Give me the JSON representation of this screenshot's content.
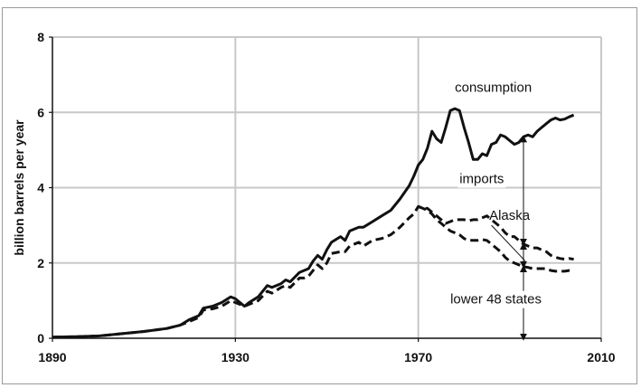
{
  "chart_data": {
    "type": "line",
    "ylabel": "billion barrels per year",
    "xlim": [
      1890,
      2010
    ],
    "ylim": [
      0,
      8
    ],
    "x_ticks": [
      1890,
      1930,
      1970,
      2010
    ],
    "y_ticks": [
      0,
      2,
      4,
      6,
      8
    ],
    "grid": true,
    "legend": "none",
    "series": [
      {
        "name": "consumption",
        "style": "solid",
        "color": "#111111",
        "points": [
          [
            1890,
            0.03
          ],
          [
            1895,
            0.04
          ],
          [
            1900,
            0.06
          ],
          [
            1905,
            0.12
          ],
          [
            1910,
            0.18
          ],
          [
            1915,
            0.26
          ],
          [
            1918,
            0.35
          ],
          [
            1920,
            0.5
          ],
          [
            1922,
            0.6
          ],
          [
            1923,
            0.8
          ],
          [
            1925,
            0.85
          ],
          [
            1927,
            0.95
          ],
          [
            1929,
            1.1
          ],
          [
            1930,
            1.05
          ],
          [
            1932,
            0.85
          ],
          [
            1933,
            0.95
          ],
          [
            1935,
            1.1
          ],
          [
            1937,
            1.4
          ],
          [
            1938,
            1.35
          ],
          [
            1940,
            1.45
          ],
          [
            1941,
            1.55
          ],
          [
            1942,
            1.5
          ],
          [
            1944,
            1.75
          ],
          [
            1945,
            1.8
          ],
          [
            1946,
            1.85
          ],
          [
            1947,
            2.05
          ],
          [
            1948,
            2.2
          ],
          [
            1949,
            2.1
          ],
          [
            1950,
            2.35
          ],
          [
            1951,
            2.55
          ],
          [
            1953,
            2.7
          ],
          [
            1954,
            2.6
          ],
          [
            1955,
            2.85
          ],
          [
            1957,
            2.95
          ],
          [
            1958,
            2.95
          ],
          [
            1960,
            3.1
          ],
          [
            1962,
            3.25
          ],
          [
            1964,
            3.4
          ],
          [
            1966,
            3.7
          ],
          [
            1968,
            4.05
          ],
          [
            1969,
            4.3
          ],
          [
            1970,
            4.6
          ],
          [
            1971,
            4.75
          ],
          [
            1972,
            5.05
          ],
          [
            1973,
            5.5
          ],
          [
            1974,
            5.3
          ],
          [
            1975,
            5.2
          ],
          [
            1976,
            5.6
          ],
          [
            1977,
            6.05
          ],
          [
            1978,
            6.1
          ],
          [
            1979,
            6.05
          ],
          [
            1980,
            5.6
          ],
          [
            1981,
            5.2
          ],
          [
            1982,
            4.75
          ],
          [
            1983,
            4.75
          ],
          [
            1984,
            4.9
          ],
          [
            1985,
            4.85
          ],
          [
            1986,
            5.15
          ],
          [
            1987,
            5.2
          ],
          [
            1988,
            5.4
          ],
          [
            1989,
            5.35
          ],
          [
            1990,
            5.25
          ],
          [
            1991,
            5.15
          ],
          [
            1992,
            5.2
          ],
          [
            1993,
            5.35
          ],
          [
            1994,
            5.4
          ],
          [
            1995,
            5.35
          ],
          [
            1996,
            5.5
          ],
          [
            1997,
            5.6
          ],
          [
            1998,
            5.7
          ],
          [
            1999,
            5.8
          ],
          [
            2000,
            5.85
          ],
          [
            2001,
            5.8
          ],
          [
            2002,
            5.82
          ],
          [
            2003,
            5.88
          ],
          [
            2004,
            5.93
          ]
        ]
      },
      {
        "name": "Alaska",
        "style": "dashed",
        "color": "#111111",
        "points": [
          [
            1890,
            0.03
          ],
          [
            1895,
            0.04
          ],
          [
            1900,
            0.06
          ],
          [
            1905,
            0.12
          ],
          [
            1910,
            0.18
          ],
          [
            1915,
            0.26
          ],
          [
            1918,
            0.35
          ],
          [
            1920,
            0.45
          ],
          [
            1922,
            0.55
          ],
          [
            1923,
            0.75
          ],
          [
            1925,
            0.78
          ],
          [
            1927,
            0.85
          ],
          [
            1929,
            1.0
          ],
          [
            1930,
            0.95
          ],
          [
            1932,
            0.85
          ],
          [
            1933,
            0.9
          ],
          [
            1935,
            1.0
          ],
          [
            1937,
            1.25
          ],
          [
            1938,
            1.2
          ],
          [
            1940,
            1.35
          ],
          [
            1941,
            1.4
          ],
          [
            1942,
            1.35
          ],
          [
            1944,
            1.6
          ],
          [
            1945,
            1.6
          ],
          [
            1946,
            1.65
          ],
          [
            1947,
            1.8
          ],
          [
            1948,
            1.95
          ],
          [
            1949,
            1.85
          ],
          [
            1950,
            2.0
          ],
          [
            1951,
            2.25
          ],
          [
            1953,
            2.3
          ],
          [
            1954,
            2.3
          ],
          [
            1955,
            2.45
          ],
          [
            1957,
            2.55
          ],
          [
            1958,
            2.45
          ],
          [
            1960,
            2.6
          ],
          [
            1962,
            2.65
          ],
          [
            1964,
            2.75
          ],
          [
            1966,
            2.95
          ],
          [
            1968,
            3.2
          ],
          [
            1969,
            3.3
          ],
          [
            1970,
            3.5
          ],
          [
            1971,
            3.45
          ],
          [
            1972,
            3.45
          ],
          [
            1973,
            3.35
          ],
          [
            1974,
            3.25
          ],
          [
            1975,
            3.15
          ],
          [
            1976,
            3.05
          ],
          [
            1977,
            3.1
          ],
          [
            1978,
            3.15
          ],
          [
            1979,
            3.15
          ],
          [
            1980,
            3.15
          ],
          [
            1981,
            3.12
          ],
          [
            1982,
            3.15
          ],
          [
            1983,
            3.15
          ],
          [
            1984,
            3.2
          ],
          [
            1985,
            3.25
          ],
          [
            1986,
            3.15
          ],
          [
            1987,
            3.05
          ],
          [
            1988,
            2.95
          ],
          [
            1989,
            2.8
          ],
          [
            1990,
            2.7
          ],
          [
            1991,
            2.7
          ],
          [
            1992,
            2.6
          ],
          [
            1993,
            2.5
          ],
          [
            1994,
            2.45
          ],
          [
            1995,
            2.4
          ],
          [
            1996,
            2.4
          ],
          [
            1997,
            2.35
          ],
          [
            1998,
            2.3
          ],
          [
            1999,
            2.2
          ],
          [
            2000,
            2.15
          ],
          [
            2001,
            2.12
          ],
          [
            2002,
            2.1
          ],
          [
            2003,
            2.12
          ],
          [
            2004,
            2.1
          ]
        ]
      },
      {
        "name": "lower 48 states",
        "style": "dashed",
        "color": "#111111",
        "points": [
          [
            1970,
            3.5
          ],
          [
            1971,
            3.45
          ],
          [
            1972,
            3.4
          ],
          [
            1973,
            3.3
          ],
          [
            1974,
            3.15
          ],
          [
            1975,
            3.05
          ],
          [
            1976,
            2.95
          ],
          [
            1977,
            2.85
          ],
          [
            1978,
            2.8
          ],
          [
            1979,
            2.75
          ],
          [
            1980,
            2.65
          ],
          [
            1981,
            2.6
          ],
          [
            1982,
            2.6
          ],
          [
            1983,
            2.6
          ],
          [
            1984,
            2.62
          ],
          [
            1985,
            2.6
          ],
          [
            1986,
            2.5
          ],
          [
            1987,
            2.4
          ],
          [
            1988,
            2.3
          ],
          [
            1989,
            2.15
          ],
          [
            1990,
            2.05
          ],
          [
            1991,
            2.0
          ],
          [
            1992,
            1.95
          ],
          [
            1993,
            1.9
          ],
          [
            1994,
            1.88
          ],
          [
            1995,
            1.85
          ],
          [
            1996,
            1.85
          ],
          [
            1997,
            1.85
          ],
          [
            1998,
            1.85
          ],
          [
            1999,
            1.8
          ],
          [
            2000,
            1.78
          ],
          [
            2001,
            1.78
          ],
          [
            2002,
            1.78
          ],
          [
            2003,
            1.8
          ],
          [
            2004,
            1.78
          ]
        ]
      }
    ],
    "annotations": [
      {
        "text": "consumption",
        "x": 1978,
        "y": 6.55
      },
      {
        "text": "imports",
        "x": 1979,
        "y": 4.12
      },
      {
        "text": "Alaska",
        "x": 1985.5,
        "y": 3.15
      },
      {
        "text": "lower 48 states",
        "x": 1977,
        "y": 0.92
      }
    ],
    "arrow_x": 1993
  }
}
